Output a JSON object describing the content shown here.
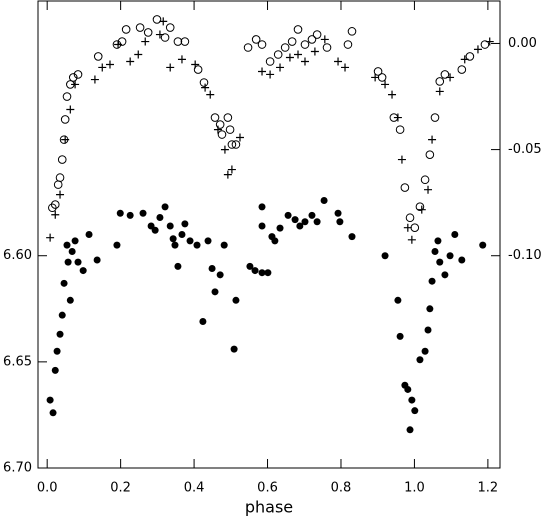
{
  "chart_data": {
    "type": "scatter",
    "xlabel": "phase",
    "xlim": [
      -0.025,
      1.233
    ],
    "xticks": [
      {
        "value": 0,
        "label": "0.0"
      },
      0.2,
      0.4,
      0.6,
      0.8,
      {
        "value": 1,
        "label": "1.0"
      },
      1.2
    ],
    "ylim": [
      6.7,
      6.48
    ],
    "yticks": [
      {
        "value": 6.6,
        "label": "6.60"
      },
      {
        "value": 6.65,
        "label": "6.65"
      },
      {
        "value": 6.7,
        "label": "6.70"
      }
    ],
    "y2lim": [
      -0.2,
      0.02
    ],
    "y2ticks": [
      {
        "value": 0,
        "label": "0.00"
      },
      {
        "value": -0.05,
        "label": "-0.05"
      },
      {
        "value": -0.1,
        "label": "-0.10"
      }
    ],
    "series": [
      {
        "marker": "filled-circle",
        "color": "#000000",
        "x": [
          0.008,
          0.016,
          0.022,
          0.027,
          0.035,
          0.041,
          0.046,
          0.054,
          0.057,
          0.063,
          0.068,
          0.076,
          0.084,
          0.098,
          0.114,
          0.136,
          0.19,
          0.199,
          0.226,
          0.261,
          0.283,
          0.294,
          0.307,
          0.321,
          0.335,
          0.343,
          0.348,
          0.356,
          0.367,
          0.375,
          0.389,
          0.408,
          0.424,
          0.438,
          0.449,
          0.457,
          0.471,
          0.482,
          0.514,
          0.509,
          0.552,
          0.566,
          0.585,
          0.601,
          0.585,
          0.585,
          0.612,
          0.62,
          0.634,
          0.656,
          0.675,
          0.688,
          0.702,
          0.721,
          0.735,
          0.754,
          0.792,
          0.797,
          0.83,
          0.92,
          0.955,
          0.961,
          0.974,
          0.982,
          0.993,
          1.001,
          0.988,
          1.015,
          1.029,
          1.037,
          1.042,
          1.048,
          1.056,
          1.064,
          1.069,
          1.083,
          1.097,
          1.11,
          1.129,
          1.186
        ],
        "values": [
          6.668,
          6.674,
          6.654,
          6.645,
          6.637,
          6.628,
          6.613,
          6.595,
          6.603,
          6.621,
          6.598,
          6.593,
          6.603,
          6.607,
          6.59,
          6.602,
          6.595,
          6.58,
          6.581,
          6.58,
          6.586,
          6.588,
          6.582,
          6.577,
          6.586,
          6.592,
          6.595,
          6.605,
          6.59,
          6.585,
          6.593,
          6.595,
          6.631,
          6.593,
          6.606,
          6.617,
          6.609,
          6.595,
          6.621,
          6.644,
          6.605,
          6.607,
          6.608,
          6.608,
          6.586,
          6.577,
          6.591,
          6.593,
          6.587,
          6.581,
          6.583,
          6.586,
          6.584,
          6.581,
          6.584,
          6.574,
          6.58,
          6.584,
          6.591,
          6.6,
          6.621,
          6.638,
          6.661,
          6.663,
          6.668,
          6.673,
          6.682,
          6.649,
          6.645,
          6.635,
          6.625,
          6.612,
          6.598,
          6.593,
          6.603,
          6.609,
          6.6,
          6.59,
          6.602,
          6.595
        ]
      },
      {
        "marker": "open-circle",
        "color": "#000000",
        "axis": "y2",
        "x": [
          0.014,
          0.022,
          0.03,
          0.035,
          0.041,
          0.046,
          0.049,
          0.054,
          0.063,
          0.071,
          0.084,
          0.139,
          0.19,
          0.204,
          0.215,
          0.253,
          0.275,
          0.299,
          0.321,
          0.335,
          0.356,
          0.375,
          0.411,
          0.427,
          0.457,
          0.471,
          0.476,
          0.492,
          0.498,
          0.503,
          0.514,
          0.547,
          0.569,
          0.585,
          0.607,
          0.629,
          0.648,
          0.667,
          0.683,
          0.702,
          0.721,
          0.735,
          0.762,
          0.819,
          0.83,
          0.901,
          0.912,
          0.944,
          0.961,
          0.974,
          0.988,
          1.001,
          1.015,
          1.029,
          1.042,
          1.056,
          1.069,
          1.083,
          1.129,
          1.151,
          1.192
        ],
        "values": [
          -0.0774,
          -0.0759,
          -0.0665,
          -0.0632,
          -0.0547,
          -0.0453,
          -0.0358,
          -0.025,
          -0.0193,
          -0.016,
          -0.0146,
          -0.0061,
          -0.0005,
          0.0009,
          0.0066,
          0.0075,
          0.0052,
          0.0113,
          0.0028,
          0.0075,
          0.0009,
          0.0009,
          -0.0123,
          -0.0184,
          -0.0349,
          -0.0382,
          -0.0429,
          -0.0349,
          -0.0406,
          -0.0476,
          -0.0476,
          -0.0019,
          0.0019,
          -0.0005,
          -0.0085,
          -0.0052,
          -0.0019,
          0.0009,
          0.0066,
          -0.0005,
          0.0019,
          0.0042,
          -0.0019,
          -0.0005,
          0.0057,
          -0.0132,
          -0.016,
          -0.0349,
          -0.0406,
          -0.0679,
          -0.0821,
          -0.0868,
          -0.0769,
          -0.0642,
          -0.0524,
          -0.0349,
          -0.0179,
          -0.0146,
          -0.0123,
          -0.0061,
          -0.0005
        ]
      },
      {
        "marker": "plus",
        "color": "#000000",
        "axis": "y2",
        "x": [
          0.008,
          0.022,
          0.035,
          0.049,
          0.063,
          0.076,
          0.13,
          0.15,
          0.171,
          0.193,
          0.226,
          0.248,
          0.267,
          0.307,
          0.316,
          0.335,
          0.367,
          0.403,
          0.43,
          0.444,
          0.465,
          0.484,
          0.492,
          0.503,
          0.525,
          0.585,
          0.607,
          0.634,
          0.661,
          0.683,
          0.702,
          0.729,
          0.756,
          0.792,
          0.811,
          0.893,
          0.92,
          0.939,
          0.955,
          0.966,
          0.982,
          0.993,
          1.02,
          1.037,
          1.048,
          1.069,
          1.097,
          1.137,
          1.173,
          1.205
        ],
        "values": [
          -0.0915,
          -0.0807,
          -0.0712,
          -0.0453,
          -0.0311,
          -0.0193,
          -0.017,
          -0.0113,
          -0.0099,
          -0.0005,
          -0.0085,
          -0.0052,
          0.0009,
          0.0042,
          0.0104,
          -0.0113,
          -0.0075,
          -0.0099,
          -0.0208,
          -0.0241,
          -0.0406,
          -0.05,
          -0.0618,
          -0.0594,
          -0.0443,
          -0.0132,
          -0.0146,
          -0.0113,
          -0.0066,
          -0.0052,
          -0.0085,
          -0.0038,
          0.0019,
          -0.0085,
          -0.0113,
          -0.016,
          -0.0193,
          -0.0241,
          -0.0349,
          -0.0547,
          -0.0868,
          -0.0925,
          -0.0783,
          -0.0689,
          -0.0453,
          -0.0226,
          -0.016,
          -0.0075,
          -0.0028,
          0.0009
        ]
      }
    ]
  }
}
